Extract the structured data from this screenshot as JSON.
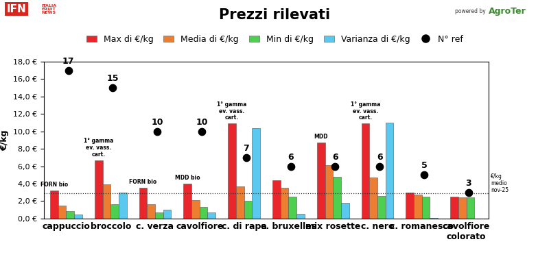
{
  "chart_data": {
    "type": "bar",
    "title": "Prezzi rilevati",
    "source_logos": [
      "IFN",
      "ITALIA FRUIT NEWS",
      "powered by",
      "AgroTer"
    ],
    "y_label": "€/kg",
    "categories": [
      "cappuccio",
      "broccolo",
      "c. verza",
      "cavolfiore",
      "c. di rapa",
      "c. bruxelles",
      "mix rosette",
      "c. nero",
      "c. romanesco",
      "cavolfiore colorato"
    ],
    "series": [
      {
        "name": "Max di €/kg",
        "color": "#e8262b",
        "values": [
          3.2,
          6.7,
          3.5,
          4.0,
          10.9,
          4.4,
          8.7,
          10.9,
          3.0,
          2.5
        ]
      },
      {
        "name": "Media di €/kg",
        "color": "#ed7d31",
        "values": [
          1.5,
          3.9,
          1.6,
          2.1,
          3.7,
          3.5,
          6.1,
          4.7,
          2.7,
          2.45
        ]
      },
      {
        "name": "Min di €/kg",
        "color": "#4fcf4f",
        "values": [
          0.85,
          1.6,
          0.7,
          1.3,
          2.0,
          2.5,
          4.8,
          2.6,
          2.5,
          2.4
        ]
      },
      {
        "name": "Varianza di €/kg",
        "color": "#5bc8f0",
        "values": [
          0.45,
          3.0,
          1.0,
          0.65,
          10.4,
          0.5,
          1.8,
          11.0,
          0.05,
          0.01
        ]
      },
      {
        "name": "N° ref",
        "type": "scatter",
        "color": "#000000",
        "marker": "o",
        "data_labels": true,
        "values": [
          17,
          15,
          10,
          10,
          7,
          6,
          6,
          6,
          5,
          3
        ]
      }
    ],
    "annotations": [
      {
        "text": "FORN bio",
        "category": "cappuccio",
        "series": "Max di €/kg"
      },
      {
        "text": "1° gamma ev. vass. cart.",
        "category": "broccolo",
        "series": "Max di €/kg"
      },
      {
        "text": "FORN bio",
        "category": "c. verza",
        "series": "Max di €/kg"
      },
      {
        "text": "MDD bio",
        "category": "cavolfiore",
        "series": "Max di €/kg"
      },
      {
        "text": "1° gamma ev. vass. cart.",
        "category": "c. di rapa",
        "series": "Max di €/kg"
      },
      {
        "text": "MDD",
        "category": "mix rosette",
        "series": "Max di €/kg"
      },
      {
        "text": "1° gamma ev. vass. cart.",
        "category": "c. nero",
        "series": "Max di €/kg"
      }
    ],
    "reference_line": {
      "value": 2.9,
      "label": "€/kg medio nov-25"
    },
    "ylim": [
      0,
      18
    ],
    "yticks": [
      {
        "value": 0,
        "label": "0,0 €"
      },
      {
        "value": 2,
        "label": "2,0 €"
      },
      {
        "value": 4,
        "label": "4,0 €"
      },
      {
        "value": 6,
        "label": "6,0 €"
      },
      {
        "value": 8,
        "label": "8,0 €"
      },
      {
        "value": 10,
        "label": "10,0 €"
      },
      {
        "value": 12,
        "label": "12,0 €"
      },
      {
        "value": 14,
        "label": "14,0 €"
      },
      {
        "value": 16,
        "label": "16,0 €"
      },
      {
        "value": 18,
        "label": "18,0 €"
      }
    ],
    "grid": false,
    "legend": "upper center"
  }
}
